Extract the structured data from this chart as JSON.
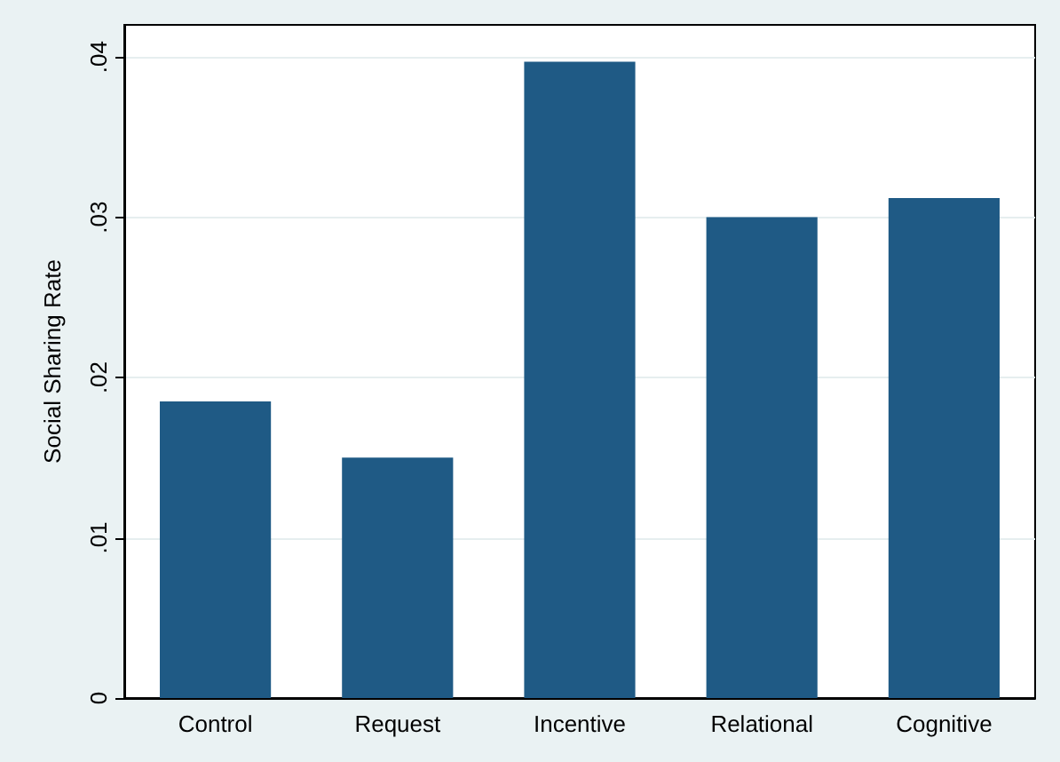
{
  "chart_data": {
    "type": "bar",
    "ylabel": "Social Sharing Rate",
    "categories": [
      "Control",
      "Request",
      "Incentive",
      "Relational",
      "Cognitive"
    ],
    "values": [
      0.0185,
      0.015,
      0.0397,
      0.03,
      0.0312
    ],
    "color": "#1f5a85",
    "ylim": [
      0,
      0.042
    ],
    "yticks": [
      0,
      {
        "value": 0.01,
        "label": ".01"
      },
      {
        "value": 0.02,
        "label": ".02"
      },
      {
        "value": 0.03,
        "label": ".03"
      },
      {
        "value": 0.04,
        "label": ".04"
      }
    ],
    "grid": "y"
  }
}
